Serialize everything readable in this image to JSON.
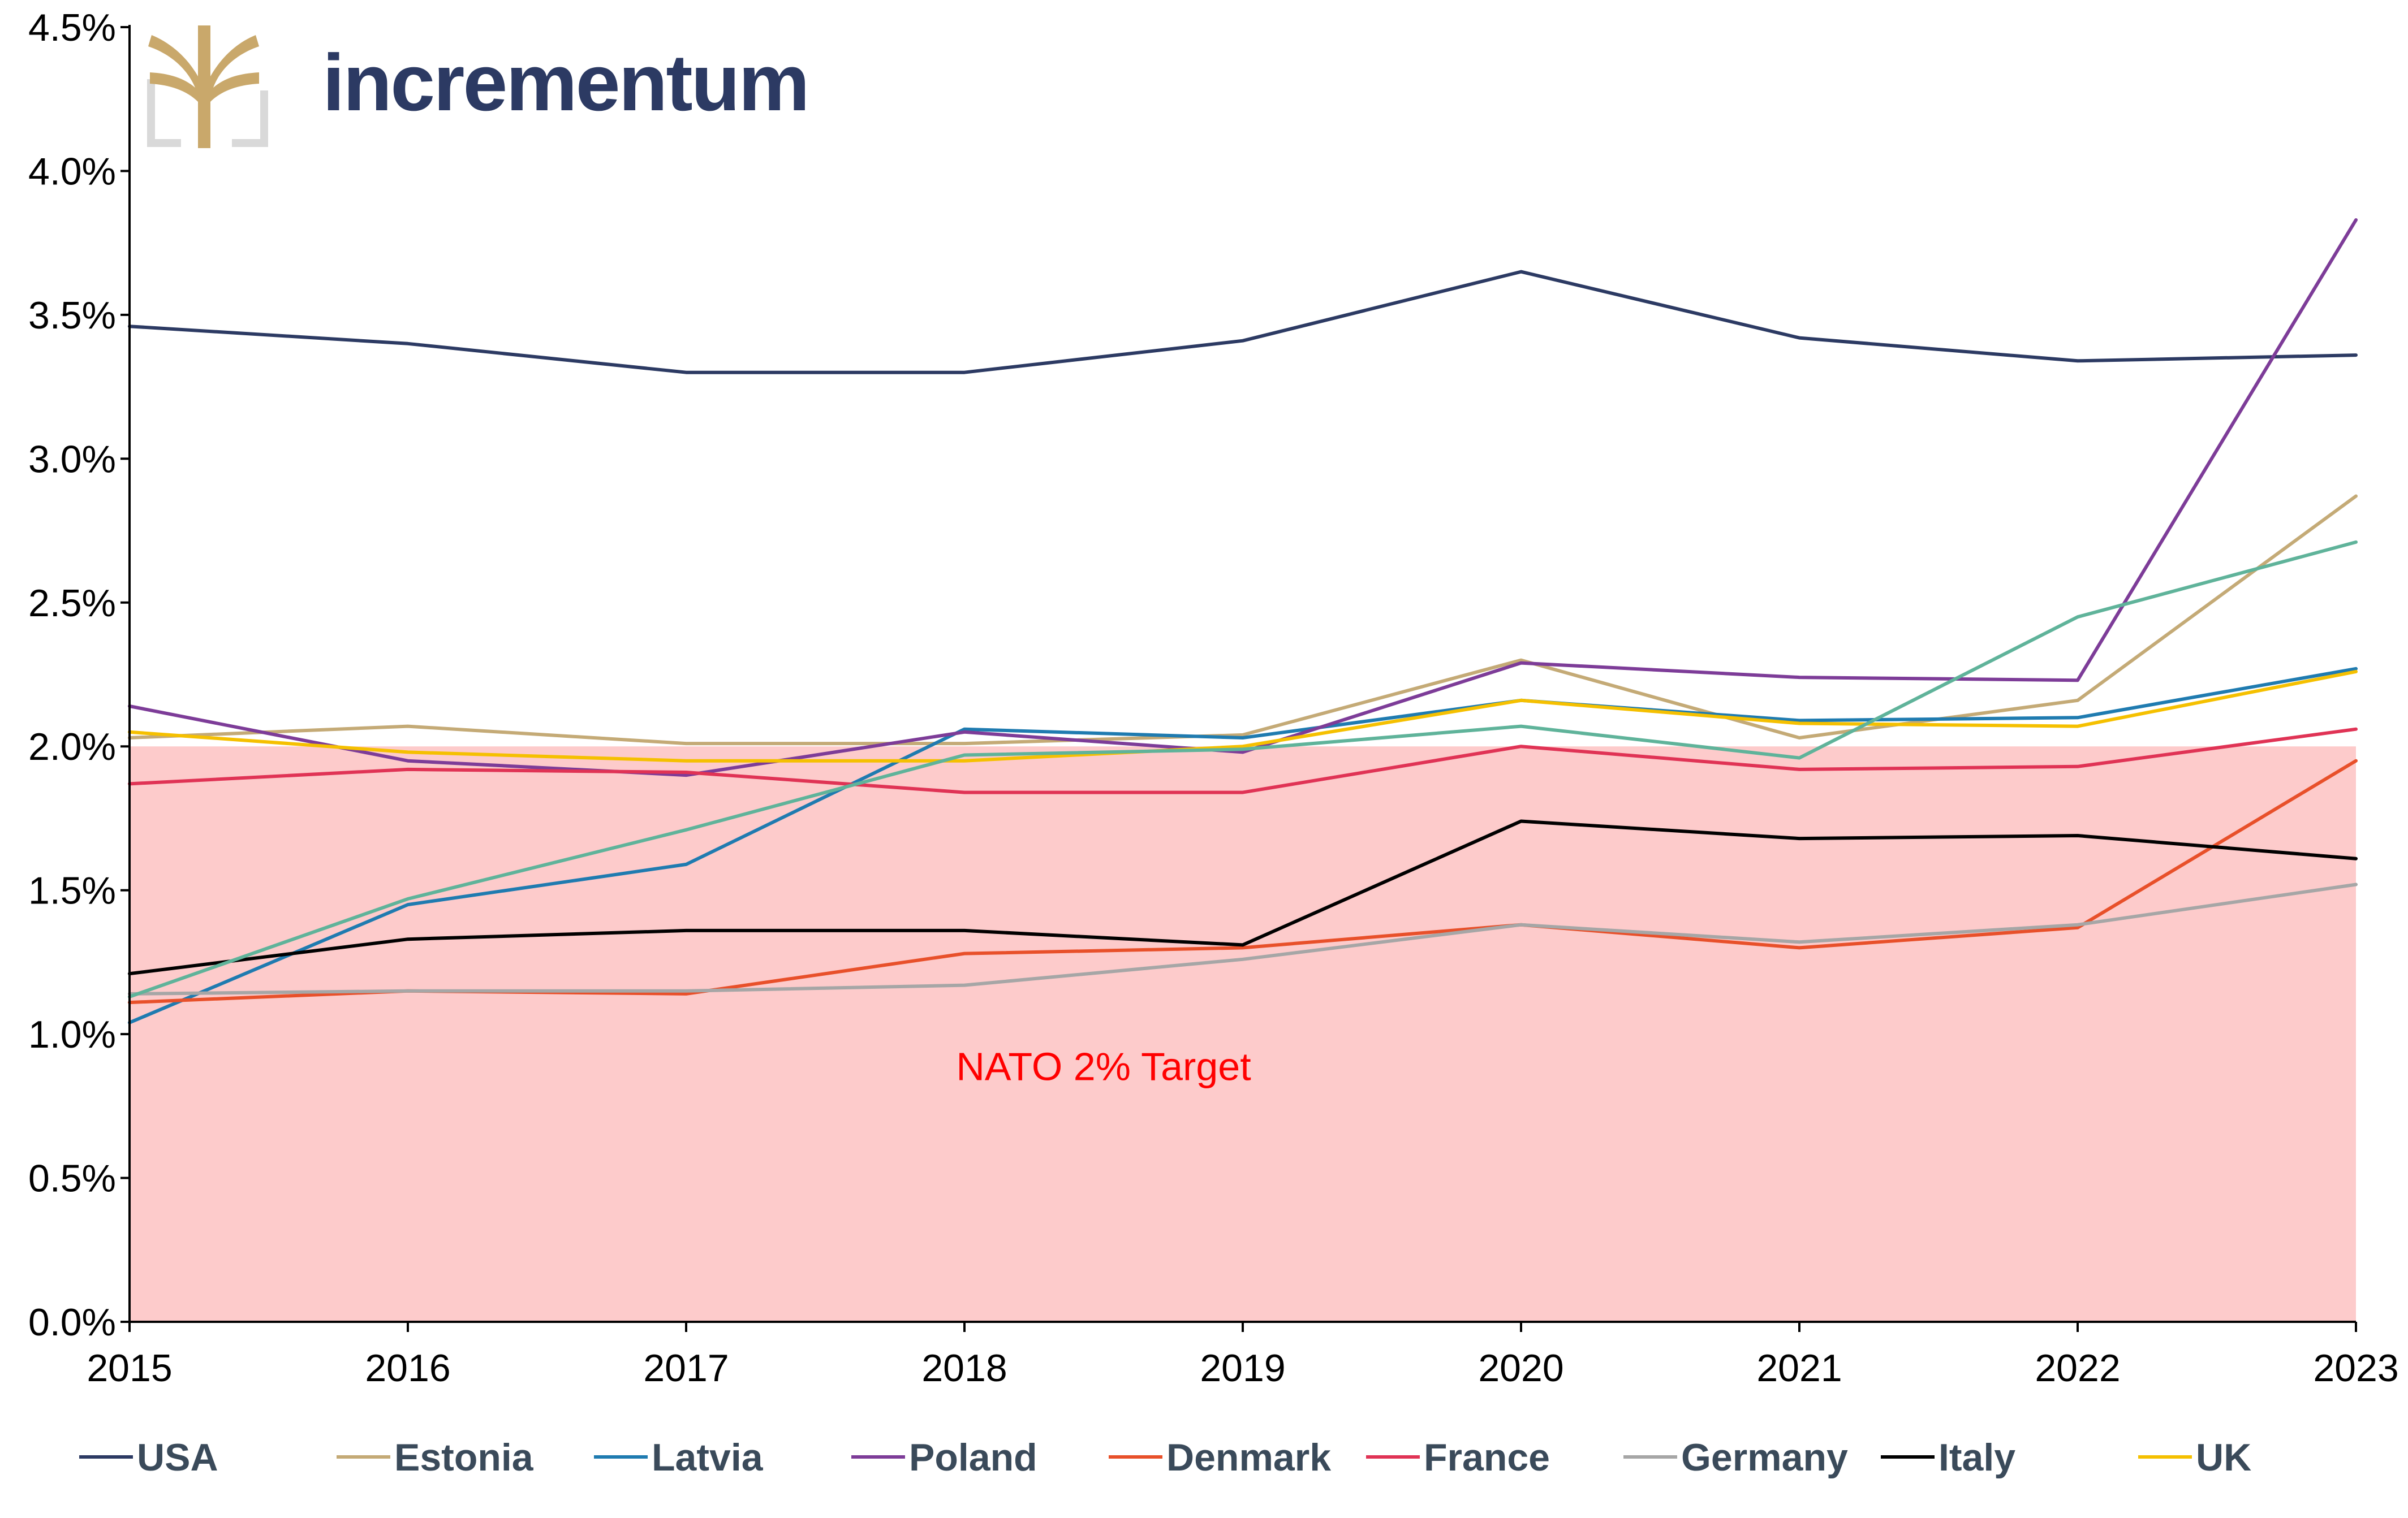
{
  "brand": {
    "name": "incrementum",
    "text_color": "#2c3a63",
    "icon_color": "#c9a86b",
    "icon": "tree-logo-icon"
  },
  "chart_data": {
    "type": "line",
    "title": "",
    "xlabel": "",
    "ylabel": "",
    "x": [
      2015,
      2016,
      2017,
      2018,
      2019,
      2020,
      2021,
      2022,
      2023
    ],
    "x_tick_labels": [
      "2015",
      "2016",
      "2017",
      "2018",
      "2019",
      "2020",
      "2021",
      "2022",
      "2023"
    ],
    "ylim": [
      0,
      4.5
    ],
    "y_ticks": [
      0,
      0.5,
      1.0,
      1.5,
      2.0,
      2.5,
      3.0,
      3.5,
      4.0,
      4.5
    ],
    "y_tick_labels": [
      "0.0%",
      "0.5%",
      "1.0%",
      "1.5%",
      "2.0%",
      "2.5%",
      "3.0%",
      "3.5%",
      "4.0%",
      "4.5%"
    ],
    "grid": false,
    "legend_position": "bottom",
    "target_band": {
      "from": 0,
      "to": 2.0,
      "label": "NATO 2% Target",
      "fill_color": "#fdcbcb",
      "label_color": "#ff0000"
    },
    "series": [
      {
        "name": "USA",
        "color": "#2c3a63",
        "values": [
          3.46,
          3.4,
          3.3,
          3.3,
          3.41,
          3.65,
          3.42,
          3.34,
          3.36
        ]
      },
      {
        "name": "Estonia",
        "color": "#c4aa76",
        "values": [
          2.03,
          2.07,
          2.01,
          2.01,
          2.04,
          2.3,
          2.03,
          2.16,
          2.87
        ]
      },
      {
        "name": "Latvia",
        "color": "#1f7bb0",
        "values": [
          1.04,
          1.45,
          1.59,
          2.06,
          2.03,
          2.16,
          2.09,
          2.1,
          2.27
        ]
      },
      {
        "name": "Poland",
        "color": "#7d3c98",
        "values": [
          2.14,
          1.95,
          1.9,
          2.05,
          1.98,
          2.29,
          2.24,
          2.23,
          3.83
        ]
      },
      {
        "name": "Denmark",
        "color": "#e8502a",
        "values": [
          1.11,
          1.15,
          1.14,
          1.28,
          1.3,
          1.38,
          1.3,
          1.37,
          1.95
        ]
      },
      {
        "name": "France",
        "color": "#e03355",
        "values": [
          1.87,
          1.92,
          1.91,
          1.84,
          1.84,
          2.0,
          1.92,
          1.93,
          2.06
        ]
      },
      {
        "name": "Germany",
        "color": "#a6a6a6",
        "values": [
          1.14,
          1.15,
          1.15,
          1.17,
          1.26,
          1.38,
          1.32,
          1.38,
          1.52
        ]
      },
      {
        "name": "Italy",
        "color": "#000000",
        "values": [
          1.21,
          1.33,
          1.36,
          1.36,
          1.31,
          1.74,
          1.68,
          1.69,
          1.61
        ]
      },
      {
        "name": "UK",
        "color": "#f5c000",
        "values": [
          2.05,
          1.98,
          1.95,
          1.95,
          2.0,
          2.16,
          2.08,
          2.07,
          2.26
        ]
      },
      {
        "name": "",
        "color": "#5fb39a",
        "values": [
          1.13,
          1.47,
          1.71,
          1.97,
          1.99,
          2.07,
          1.96,
          2.45,
          2.71
        ]
      }
    ]
  }
}
